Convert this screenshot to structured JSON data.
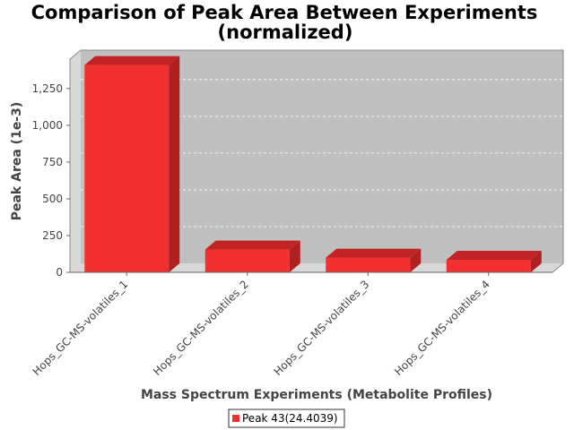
{
  "chart_data": {
    "type": "bar",
    "title": "Comparison of Peak Area Between Experiments",
    "subtitle": "(normalized)",
    "xlabel": "Mass Spectrum Experiments (Metabolite Profiles)",
    "ylabel": "Peak Area (1e-3)",
    "categories": [
      "Hops_GC-MS-volatiles_1",
      "Hops_GC-MS-volatiles_2",
      "Hops_GC-MS-volatiles_3",
      "Hops_GC-MS-volatiles_4"
    ],
    "series": [
      {
        "name": "Peak 43(24.4039)",
        "values": [
          1410,
          155,
          100,
          85
        ],
        "color": "#f23030"
      }
    ],
    "yticks": [
      "0",
      "250",
      "500",
      "750",
      "1,000",
      "1,250"
    ],
    "ylim": [
      0,
      1450
    ],
    "grid": true,
    "legend": "bottom",
    "style": "3d",
    "colors": {
      "plot_bg": "#c0c0c0",
      "bar_front": "#f23030",
      "bar_top": "#c22424",
      "bar_side": "#b02020"
    }
  }
}
